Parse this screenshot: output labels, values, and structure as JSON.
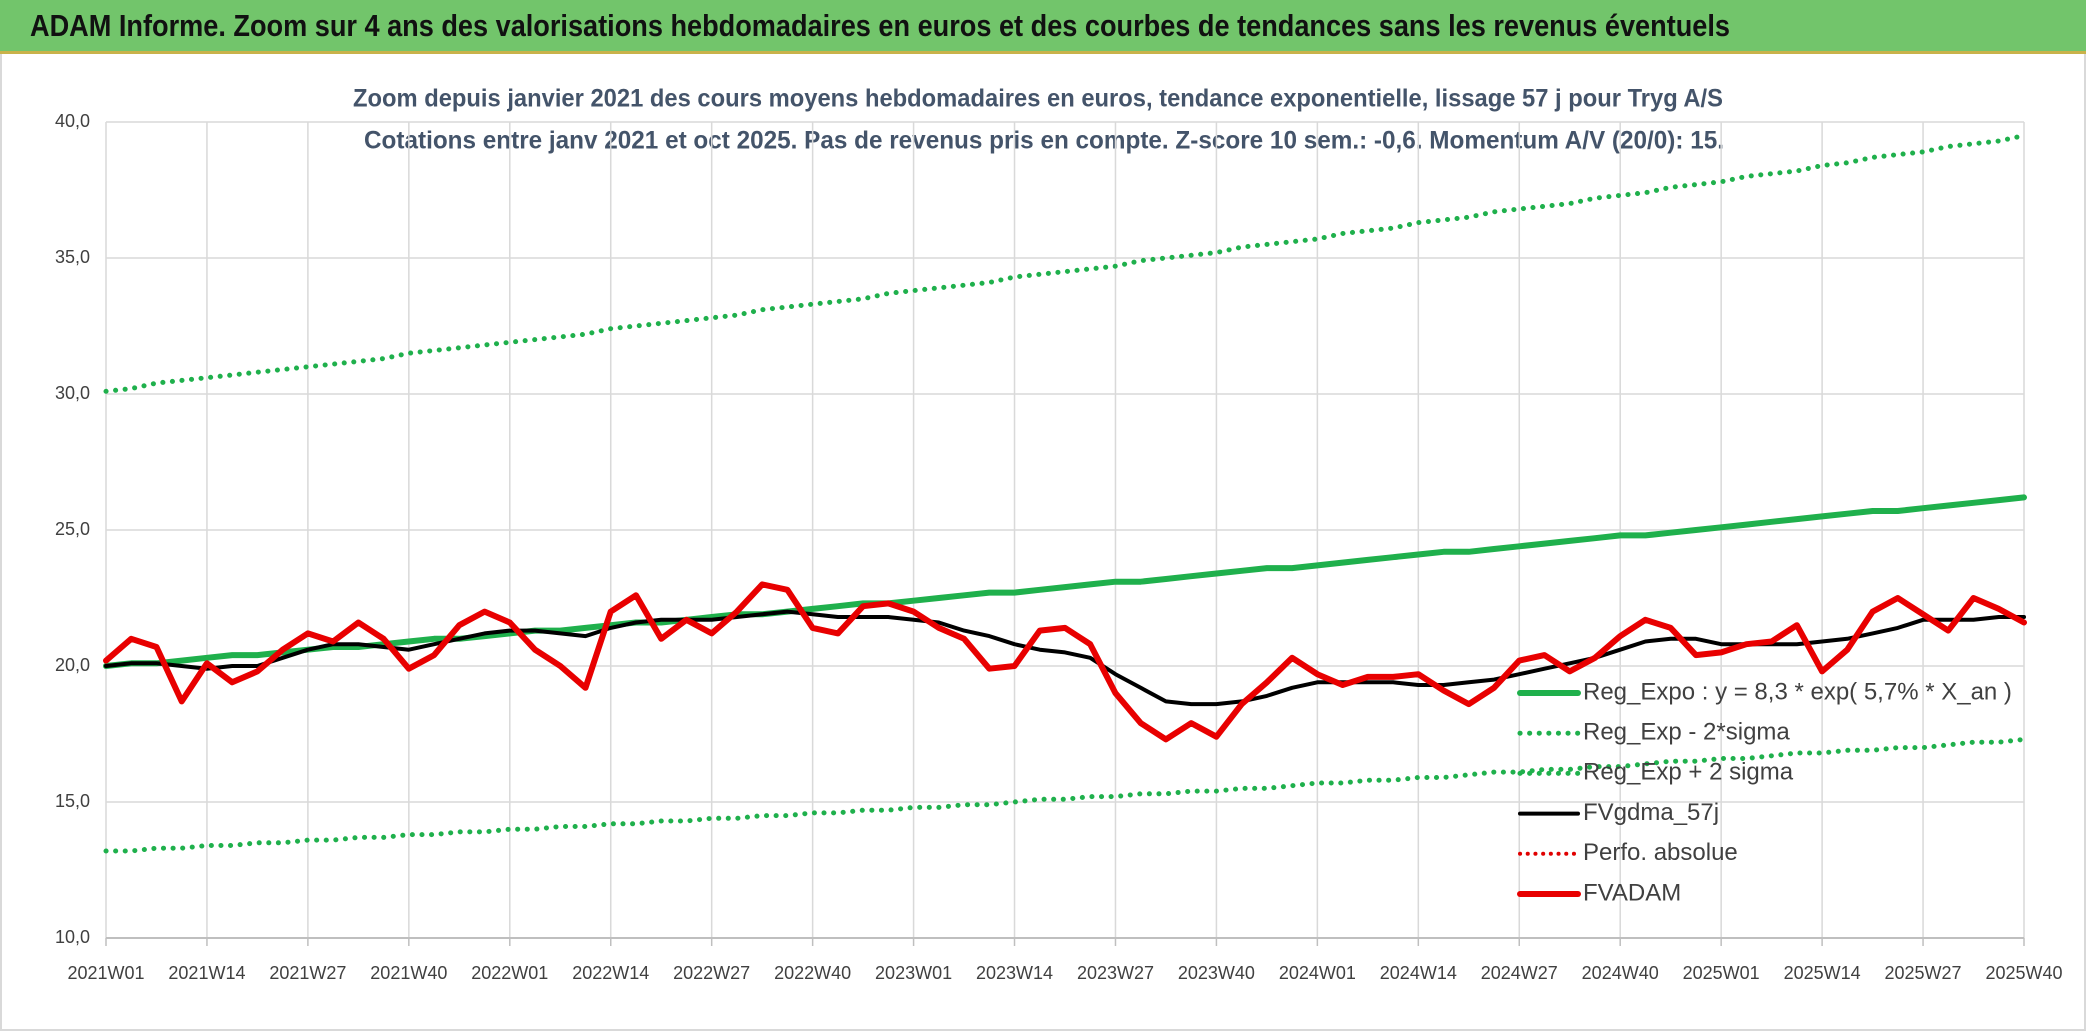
{
  "header": {
    "title": "ADAM Informe. Zoom sur 4 ans des valorisations hebdomadaires en euros et des courbes de tendances sans les revenus éventuels"
  },
  "chart_data": {
    "type": "line",
    "title": "Zoom depuis janvier 2021 des cours moyens hebdomadaires en euros, tendance exponentielle, lissage 57 j pour Tryg A/S",
    "subtitle": "Cotations entre janv 2021 et oct 2025. Pas de revenus pris en compte. Z-score 10 sem.: -0,6. Momentum A/V (20/0): 15.",
    "categories": [
      "2021W01",
      null,
      null,
      null,
      "2021W14",
      null,
      null,
      null,
      "2021W27",
      null,
      null,
      null,
      "2021W40",
      null,
      null,
      null,
      "2022W01",
      null,
      null,
      null,
      "2022W14",
      null,
      null,
      null,
      "2022W27",
      null,
      null,
      null,
      "2022W40",
      null,
      null,
      null,
      "2023W01",
      null,
      null,
      null,
      "2023W14",
      null,
      null,
      null,
      "2023W27",
      null,
      null,
      null,
      "2023W40",
      null,
      null,
      null,
      "2024W01",
      null,
      null,
      null,
      "2024W14",
      null,
      null,
      null,
      "2024W27",
      null,
      null,
      null,
      "2024W40",
      null,
      null,
      null,
      "2025W01",
      null,
      null,
      null,
      "2025W14",
      null,
      null,
      null,
      "2025W27",
      null,
      null,
      null,
      "2025W40"
    ],
    "ylim": [
      10,
      40
    ],
    "yticks": [
      {
        "value": 10,
        "label": "10,0"
      },
      {
        "value": 15,
        "label": "15,0"
      },
      {
        "value": 20,
        "label": "20,0"
      },
      {
        "value": 25,
        "label": "25,0"
      },
      {
        "value": 30,
        "label": "30,0"
      },
      {
        "value": 35,
        "label": "35,0"
      },
      {
        "value": 40,
        "label": "40,0"
      }
    ],
    "grid": true,
    "series": [
      {
        "name": "Reg_Expo : y = 8,3 * exp( 5,7% *  X_an )",
        "color": "#1fb04c",
        "style": "solid",
        "width": 6,
        "values": [
          20.0,
          20.1,
          20.1,
          20.2,
          20.3,
          20.4,
          20.4,
          20.5,
          20.6,
          20.7,
          20.7,
          20.8,
          20.9,
          21.0,
          21.0,
          21.1,
          21.2,
          21.3,
          21.3,
          21.4,
          21.5,
          21.6,
          21.6,
          21.7,
          21.8,
          21.9,
          21.9,
          22.0,
          22.1,
          22.2,
          22.3,
          22.3,
          22.4,
          22.5,
          22.6,
          22.7,
          22.7,
          22.8,
          22.9,
          23.0,
          23.1,
          23.1,
          23.2,
          23.3,
          23.4,
          23.5,
          23.6,
          23.6,
          23.7,
          23.8,
          23.9,
          24.0,
          24.1,
          24.2,
          24.2,
          24.3,
          24.4,
          24.5,
          24.6,
          24.7,
          24.8,
          24.8,
          24.9,
          25.0,
          25.1,
          25.2,
          25.3,
          25.4,
          25.5,
          25.6,
          25.7,
          25.7,
          25.8,
          25.9,
          26.0,
          26.1,
          26.2
        ]
      },
      {
        "name": "Reg_Exp - 2*sigma",
        "color": "#1fb04c",
        "style": "dotted",
        "width": 5,
        "values": [
          13.2,
          13.2,
          13.3,
          13.3,
          13.4,
          13.4,
          13.5,
          13.5,
          13.6,
          13.6,
          13.7,
          13.7,
          13.8,
          13.8,
          13.9,
          13.9,
          14.0,
          14.0,
          14.1,
          14.1,
          14.2,
          14.2,
          14.3,
          14.3,
          14.4,
          14.4,
          14.5,
          14.5,
          14.6,
          14.6,
          14.7,
          14.7,
          14.8,
          14.8,
          14.9,
          14.9,
          15.0,
          15.1,
          15.1,
          15.2,
          15.2,
          15.3,
          15.3,
          15.4,
          15.4,
          15.5,
          15.5,
          15.6,
          15.7,
          15.7,
          15.8,
          15.8,
          15.9,
          15.9,
          16.0,
          16.1,
          16.1,
          16.2,
          16.2,
          16.3,
          16.3,
          16.4,
          16.5,
          16.5,
          16.6,
          16.6,
          16.7,
          16.8,
          16.8,
          16.9,
          16.9,
          17.0,
          17.0,
          17.1,
          17.2,
          17.2,
          17.3
        ]
      },
      {
        "name": "Reg_Exp + 2 sigma",
        "color": "#1fb04c",
        "style": "dotted",
        "width": 5,
        "values": [
          30.1,
          30.2,
          30.4,
          30.5,
          30.6,
          30.7,
          30.8,
          30.9,
          31.0,
          31.1,
          31.2,
          31.3,
          31.5,
          31.6,
          31.7,
          31.8,
          31.9,
          32.0,
          32.1,
          32.2,
          32.4,
          32.5,
          32.6,
          32.7,
          32.8,
          32.9,
          33.1,
          33.2,
          33.3,
          33.4,
          33.5,
          33.7,
          33.8,
          33.9,
          34.0,
          34.1,
          34.3,
          34.4,
          34.5,
          34.6,
          34.7,
          34.9,
          35.0,
          35.1,
          35.2,
          35.4,
          35.5,
          35.6,
          35.7,
          35.9,
          36.0,
          36.1,
          36.3,
          36.4,
          36.5,
          36.7,
          36.8,
          36.9,
          37.0,
          37.2,
          37.3,
          37.4,
          37.6,
          37.7,
          37.8,
          38.0,
          38.1,
          38.2,
          38.4,
          38.5,
          38.7,
          38.8,
          38.9,
          39.1,
          39.2,
          39.3,
          39.5
        ]
      },
      {
        "name": "FVgdma_57j",
        "color": "#000000",
        "style": "solid",
        "width": 4,
        "values": [
          20.0,
          20.1,
          20.1,
          20.0,
          19.9,
          20.0,
          20.0,
          20.3,
          20.6,
          20.8,
          20.8,
          20.7,
          20.6,
          20.8,
          21.0,
          21.2,
          21.3,
          21.3,
          21.2,
          21.1,
          21.4,
          21.6,
          21.7,
          21.7,
          21.7,
          21.8,
          21.9,
          22.0,
          21.9,
          21.8,
          21.8,
          21.8,
          21.7,
          21.6,
          21.3,
          21.1,
          20.8,
          20.6,
          20.5,
          20.3,
          19.7,
          19.2,
          18.7,
          18.6,
          18.6,
          18.7,
          18.9,
          19.2,
          19.4,
          19.4,
          19.4,
          19.4,
          19.3,
          19.3,
          19.4,
          19.5,
          19.7,
          19.9,
          20.1,
          20.3,
          20.6,
          20.9,
          21.0,
          21.0,
          20.8,
          20.8,
          20.8,
          20.8,
          20.9,
          21.0,
          21.2,
          21.4,
          21.7,
          21.7,
          21.7,
          21.8,
          21.8
        ]
      },
      {
        "name": "Perfo. absolue",
        "color": "#e00000",
        "style": "dotted",
        "width": 4
      },
      {
        "name": "FVADAM",
        "color": "#e80000",
        "style": "solid",
        "width": 6,
        "values": [
          20.2,
          21.0,
          20.7,
          18.7,
          20.1,
          19.4,
          19.8,
          20.6,
          21.2,
          20.9,
          21.6,
          21.0,
          19.9,
          20.4,
          21.5,
          22.0,
          21.6,
          20.6,
          20.0,
          19.2,
          22.0,
          22.6,
          21.0,
          21.7,
          21.2,
          22.0,
          23.0,
          22.8,
          21.4,
          21.2,
          22.2,
          22.3,
          22.0,
          21.4,
          21.0,
          19.9,
          20.0,
          21.3,
          21.4,
          20.8,
          19.0,
          17.9,
          17.3,
          17.9,
          17.4,
          18.6,
          19.4,
          20.3,
          19.7,
          19.3,
          19.6,
          19.6,
          19.7,
          19.1,
          18.6,
          19.2,
          20.2,
          20.4,
          19.8,
          20.3,
          21.1,
          21.7,
          21.4,
          20.4,
          20.5,
          20.8,
          20.9,
          21.5,
          19.8,
          20.6,
          22.0,
          22.5,
          21.9,
          21.3,
          22.5,
          22.1,
          21.6
        ]
      }
    ]
  }
}
